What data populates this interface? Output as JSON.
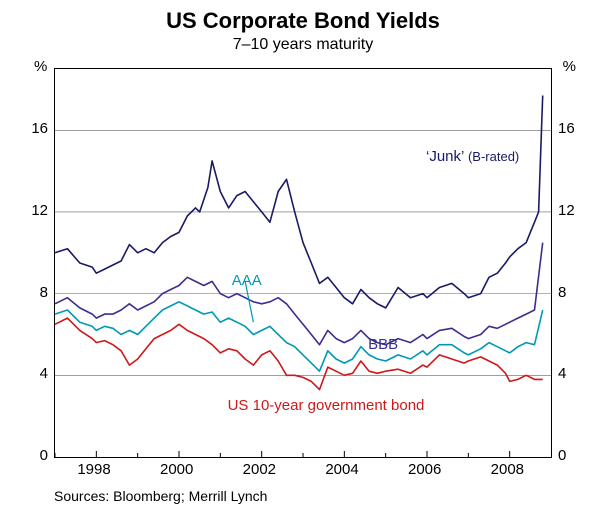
{
  "chart": {
    "type": "line",
    "title": "US Corporate Bond Yields",
    "subtitle": "7–10 years maturity",
    "y_unit": "%",
    "sources": "Sources: Bloomberg; Merrill Lynch",
    "background_color": "#ffffff",
    "grid_color": "#666666",
    "border_color": "#000000",
    "title_fontsize": 22,
    "subtitle_fontsize": 16,
    "label_fontsize": 15,
    "x": {
      "min": 1997,
      "max": 2009,
      "ticks": [
        1998,
        2000,
        2002,
        2004,
        2006,
        2008
      ],
      "tick_labels": [
        "1998",
        "2000",
        "2002",
        "2004",
        "2006",
        "2008"
      ]
    },
    "y": {
      "min": 0,
      "max": 19,
      "ticks": [
        0,
        4,
        8,
        12,
        16
      ],
      "tick_labels": [
        "0",
        "4",
        "8",
        "12",
        "16"
      ]
    },
    "series": [
      {
        "name": "junk",
        "label": "‘Junk’",
        "label_suffix": "(B-rated)",
        "color": "#1a1a66",
        "line_width": 1.6,
        "label_pos": {
          "x": 2006.0,
          "y": 15.1
        },
        "data": [
          [
            1997.0,
            10.0
          ],
          [
            1997.3,
            10.2
          ],
          [
            1997.6,
            9.5
          ],
          [
            1997.9,
            9.3
          ],
          [
            1998.0,
            9.0
          ],
          [
            1998.2,
            9.2
          ],
          [
            1998.4,
            9.4
          ],
          [
            1998.6,
            9.6
          ],
          [
            1998.8,
            10.4
          ],
          [
            1999.0,
            10.0
          ],
          [
            1999.2,
            10.2
          ],
          [
            1999.4,
            10.0
          ],
          [
            1999.6,
            10.5
          ],
          [
            1999.8,
            10.8
          ],
          [
            2000.0,
            11.0
          ],
          [
            2000.2,
            11.8
          ],
          [
            2000.4,
            12.2
          ],
          [
            2000.5,
            12.0
          ],
          [
            2000.7,
            13.2
          ],
          [
            2000.8,
            14.5
          ],
          [
            2001.0,
            13.0
          ],
          [
            2001.2,
            12.2
          ],
          [
            2001.4,
            12.8
          ],
          [
            2001.6,
            13.0
          ],
          [
            2001.8,
            12.5
          ],
          [
            2002.0,
            12.0
          ],
          [
            2002.2,
            11.5
          ],
          [
            2002.4,
            13.0
          ],
          [
            2002.6,
            13.6
          ],
          [
            2002.8,
            12.0
          ],
          [
            2003.0,
            10.5
          ],
          [
            2003.2,
            9.5
          ],
          [
            2003.4,
            8.5
          ],
          [
            2003.6,
            8.8
          ],
          [
            2003.8,
            8.3
          ],
          [
            2004.0,
            7.8
          ],
          [
            2004.2,
            7.5
          ],
          [
            2004.4,
            8.2
          ],
          [
            2004.6,
            7.8
          ],
          [
            2004.8,
            7.5
          ],
          [
            2005.0,
            7.3
          ],
          [
            2005.3,
            8.3
          ],
          [
            2005.6,
            7.8
          ],
          [
            2005.9,
            8.0
          ],
          [
            2006.0,
            7.8
          ],
          [
            2006.3,
            8.3
          ],
          [
            2006.6,
            8.5
          ],
          [
            2006.9,
            8.0
          ],
          [
            2007.0,
            7.8
          ],
          [
            2007.3,
            8.0
          ],
          [
            2007.5,
            8.8
          ],
          [
            2007.7,
            9.0
          ],
          [
            2007.9,
            9.5
          ],
          [
            2008.0,
            9.8
          ],
          [
            2008.2,
            10.2
          ],
          [
            2008.4,
            10.5
          ],
          [
            2008.5,
            11.0
          ],
          [
            2008.6,
            11.5
          ],
          [
            2008.7,
            12.0
          ],
          [
            2008.8,
            17.7
          ]
        ]
      },
      {
        "name": "bbb",
        "label": "BBB",
        "color": "#3a2f8f",
        "line_width": 1.6,
        "label_pos": {
          "x": 2004.6,
          "y": 5.9
        },
        "data": [
          [
            1997.0,
            7.5
          ],
          [
            1997.3,
            7.8
          ],
          [
            1997.6,
            7.3
          ],
          [
            1997.9,
            7.0
          ],
          [
            1998.0,
            6.8
          ],
          [
            1998.2,
            7.0
          ],
          [
            1998.4,
            7.0
          ],
          [
            1998.6,
            7.2
          ],
          [
            1998.8,
            7.5
          ],
          [
            1999.0,
            7.2
          ],
          [
            1999.2,
            7.4
          ],
          [
            1999.4,
            7.6
          ],
          [
            1999.6,
            8.0
          ],
          [
            1999.8,
            8.2
          ],
          [
            2000.0,
            8.4
          ],
          [
            2000.2,
            8.8
          ],
          [
            2000.4,
            8.6
          ],
          [
            2000.6,
            8.4
          ],
          [
            2000.8,
            8.6
          ],
          [
            2001.0,
            8.0
          ],
          [
            2001.2,
            7.8
          ],
          [
            2001.4,
            8.0
          ],
          [
            2001.6,
            7.8
          ],
          [
            2001.8,
            7.6
          ],
          [
            2002.0,
            7.5
          ],
          [
            2002.2,
            7.6
          ],
          [
            2002.4,
            7.8
          ],
          [
            2002.6,
            7.5
          ],
          [
            2002.8,
            7.0
          ],
          [
            2003.0,
            6.5
          ],
          [
            2003.2,
            6.0
          ],
          [
            2003.4,
            5.5
          ],
          [
            2003.6,
            6.2
          ],
          [
            2003.8,
            5.8
          ],
          [
            2004.0,
            5.6
          ],
          [
            2004.2,
            5.8
          ],
          [
            2004.4,
            6.2
          ],
          [
            2004.6,
            5.8
          ],
          [
            2004.8,
            5.6
          ],
          [
            2005.0,
            5.5
          ],
          [
            2005.3,
            5.8
          ],
          [
            2005.6,
            5.6
          ],
          [
            2005.9,
            6.0
          ],
          [
            2006.0,
            5.8
          ],
          [
            2006.3,
            6.2
          ],
          [
            2006.6,
            6.3
          ],
          [
            2006.9,
            5.9
          ],
          [
            2007.0,
            5.8
          ],
          [
            2007.3,
            6.0
          ],
          [
            2007.5,
            6.4
          ],
          [
            2007.7,
            6.3
          ],
          [
            2007.9,
            6.5
          ],
          [
            2008.0,
            6.6
          ],
          [
            2008.2,
            6.8
          ],
          [
            2008.4,
            7.0
          ],
          [
            2008.6,
            7.2
          ],
          [
            2008.8,
            10.5
          ]
        ]
      },
      {
        "name": "aaa",
        "label": "AAA",
        "color": "#0099b3",
        "line_width": 1.6,
        "label_pos": {
          "x": 2001.3,
          "y": 9.0
        },
        "data": [
          [
            1997.0,
            7.0
          ],
          [
            1997.3,
            7.2
          ],
          [
            1997.6,
            6.6
          ],
          [
            1997.9,
            6.4
          ],
          [
            1998.0,
            6.2
          ],
          [
            1998.2,
            6.4
          ],
          [
            1998.4,
            6.3
          ],
          [
            1998.6,
            6.0
          ],
          [
            1998.8,
            6.2
          ],
          [
            1999.0,
            6.0
          ],
          [
            1999.2,
            6.4
          ],
          [
            1999.4,
            6.8
          ],
          [
            1999.6,
            7.2
          ],
          [
            1999.8,
            7.4
          ],
          [
            2000.0,
            7.6
          ],
          [
            2000.2,
            7.4
          ],
          [
            2000.4,
            7.2
          ],
          [
            2000.6,
            7.0
          ],
          [
            2000.8,
            7.1
          ],
          [
            2001.0,
            6.6
          ],
          [
            2001.2,
            6.8
          ],
          [
            2001.4,
            6.6
          ],
          [
            2001.6,
            6.4
          ],
          [
            2001.8,
            6.0
          ],
          [
            2002.0,
            6.2
          ],
          [
            2002.2,
            6.4
          ],
          [
            2002.4,
            6.0
          ],
          [
            2002.6,
            5.6
          ],
          [
            2002.8,
            5.4
          ],
          [
            2003.0,
            5.0
          ],
          [
            2003.2,
            4.6
          ],
          [
            2003.4,
            4.2
          ],
          [
            2003.6,
            5.2
          ],
          [
            2003.8,
            4.8
          ],
          [
            2004.0,
            4.6
          ],
          [
            2004.2,
            4.8
          ],
          [
            2004.4,
            5.4
          ],
          [
            2004.6,
            5.0
          ],
          [
            2004.8,
            4.8
          ],
          [
            2005.0,
            4.7
          ],
          [
            2005.3,
            5.0
          ],
          [
            2005.6,
            4.8
          ],
          [
            2005.9,
            5.2
          ],
          [
            2006.0,
            5.0
          ],
          [
            2006.3,
            5.5
          ],
          [
            2006.6,
            5.5
          ],
          [
            2006.9,
            5.1
          ],
          [
            2007.0,
            5.0
          ],
          [
            2007.3,
            5.3
          ],
          [
            2007.5,
            5.6
          ],
          [
            2007.7,
            5.4
          ],
          [
            2007.9,
            5.2
          ],
          [
            2008.0,
            5.1
          ],
          [
            2008.2,
            5.4
          ],
          [
            2008.4,
            5.6
          ],
          [
            2008.6,
            5.5
          ],
          [
            2008.8,
            7.2
          ]
        ]
      },
      {
        "name": "ust10",
        "label": "US 10-year government bond",
        "color": "#cc1a1a",
        "line_width": 1.6,
        "label_pos": {
          "x": 2001.2,
          "y": 2.9
        },
        "data": [
          [
            1997.0,
            6.5
          ],
          [
            1997.3,
            6.8
          ],
          [
            1997.6,
            6.2
          ],
          [
            1997.9,
            5.8
          ],
          [
            1998.0,
            5.6
          ],
          [
            1998.2,
            5.7
          ],
          [
            1998.4,
            5.5
          ],
          [
            1998.6,
            5.2
          ],
          [
            1998.8,
            4.5
          ],
          [
            1999.0,
            4.8
          ],
          [
            1999.2,
            5.3
          ],
          [
            1999.4,
            5.8
          ],
          [
            1999.6,
            6.0
          ],
          [
            1999.8,
            6.2
          ],
          [
            2000.0,
            6.5
          ],
          [
            2000.2,
            6.2
          ],
          [
            2000.4,
            6.0
          ],
          [
            2000.6,
            5.8
          ],
          [
            2000.8,
            5.5
          ],
          [
            2001.0,
            5.1
          ],
          [
            2001.2,
            5.3
          ],
          [
            2001.4,
            5.2
          ],
          [
            2001.6,
            4.8
          ],
          [
            2001.8,
            4.5
          ],
          [
            2002.0,
            5.0
          ],
          [
            2002.2,
            5.2
          ],
          [
            2002.4,
            4.7
          ],
          [
            2002.6,
            4.0
          ],
          [
            2002.8,
            4.0
          ],
          [
            2003.0,
            3.9
          ],
          [
            2003.2,
            3.7
          ],
          [
            2003.4,
            3.3
          ],
          [
            2003.6,
            4.4
          ],
          [
            2003.8,
            4.2
          ],
          [
            2004.0,
            4.0
          ],
          [
            2004.2,
            4.1
          ],
          [
            2004.4,
            4.7
          ],
          [
            2004.6,
            4.2
          ],
          [
            2004.8,
            4.1
          ],
          [
            2005.0,
            4.2
          ],
          [
            2005.3,
            4.3
          ],
          [
            2005.6,
            4.1
          ],
          [
            2005.9,
            4.5
          ],
          [
            2006.0,
            4.4
          ],
          [
            2006.3,
            5.0
          ],
          [
            2006.6,
            4.8
          ],
          [
            2006.9,
            4.6
          ],
          [
            2007.0,
            4.7
          ],
          [
            2007.3,
            4.9
          ],
          [
            2007.5,
            4.7
          ],
          [
            2007.7,
            4.5
          ],
          [
            2007.9,
            4.1
          ],
          [
            2008.0,
            3.7
          ],
          [
            2008.2,
            3.8
          ],
          [
            2008.4,
            4.0
          ],
          [
            2008.6,
            3.8
          ],
          [
            2008.8,
            3.8
          ]
        ]
      }
    ]
  }
}
